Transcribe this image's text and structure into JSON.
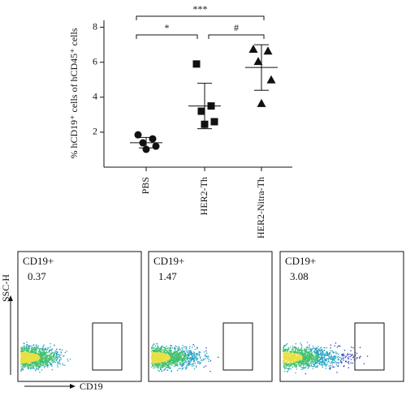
{
  "chart_data": [
    {
      "type": "dotplot",
      "ylabel": "% hCD19⁺ cells of hCD45⁺ cells",
      "categories": [
        "PBS",
        "HER2-Th",
        "HER2-Nitra-Th"
      ],
      "markers": [
        "circle",
        "square",
        "triangle"
      ],
      "color": "#111111",
      "points": [
        [
          1.85,
          1.62,
          1.39,
          1.2,
          1.02
        ],
        [
          5.9,
          3.5,
          3.2,
          2.6,
          2.45
        ],
        [
          6.75,
          6.65,
          6.05,
          5.0,
          3.65
        ]
      ],
      "mean": [
        1.4,
        3.5,
        5.7
      ],
      "sd": [
        0.3,
        1.3,
        1.3
      ],
      "ylim": [
        0,
        8.4
      ],
      "yticks": [
        2,
        4,
        6,
        8
      ],
      "annotations": [
        {
          "text": "*",
          "from": 0,
          "to": 1
        },
        {
          "text": "#",
          "from": 1,
          "to": 2
        },
        {
          "text": "***",
          "from": 0,
          "to": 2
        }
      ]
    },
    {
      "type": "flow",
      "xlabel": "CD19",
      "ylabel": "SSC-H",
      "panels": [
        {
          "label": "CD19+",
          "value": 0.37
        },
        {
          "label": "CD19+",
          "value": 1.47
        },
        {
          "label": "CD19+",
          "value": 3.08
        }
      ]
    }
  ]
}
